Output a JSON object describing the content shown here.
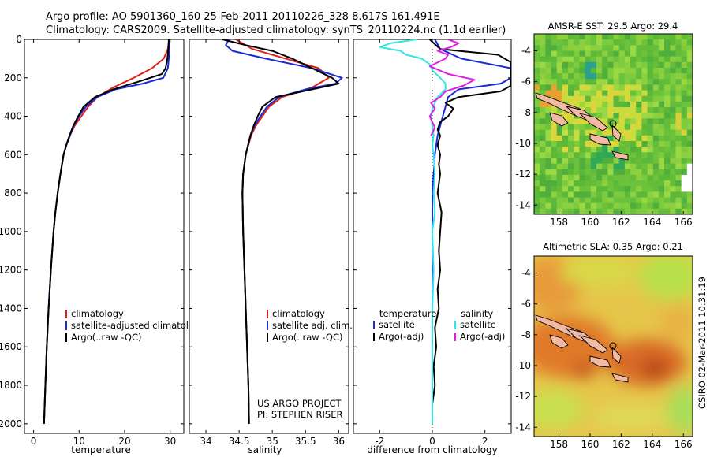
{
  "header": {
    "line1": "Argo profile: AO 5901360_160 25-Feb-2011 20110226_328 8.617S 161.491E",
    "line2": "Climatology: CARS2009. Satellite-adjusted climatology: synTS_20110224.nc (1.1d earlier)"
  },
  "footer": {
    "credit1": "US ARGO PROJECT",
    "credit2": "PI: STEPHEN RISER",
    "stamp": "CSIRO 02-Mar-2011 10:31:19"
  },
  "colors": {
    "climatology": "#e0201a",
    "satellite": "#1a2bd6",
    "argo": "#000000",
    "sal_satellite": "#33e6e6",
    "sal_argo": "#e020e0"
  },
  "chart_data": [
    {
      "type": "line",
      "id": "temperature",
      "xlabel": "temperature",
      "ylabel": "",
      "xlim": [
        -2,
        33
      ],
      "ylim": [
        2050,
        0
      ],
      "xticks": [
        0,
        10,
        20,
        30
      ],
      "yticks": [
        0,
        200,
        400,
        600,
        800,
        1000,
        1200,
        1400,
        1600,
        1800,
        2000
      ],
      "legend": [
        "climatology",
        "satellite-adjusted climatology",
        "Argo(..raw -QC)"
      ],
      "series": [
        {
          "name": "climatology",
          "color": "#e0201a",
          "y": [
            0,
            50,
            100,
            150,
            200,
            250,
            300,
            350,
            400,
            450,
            500,
            550,
            600,
            700,
            800,
            900,
            1000,
            1200,
            1400,
            1600,
            1800,
            2000
          ],
          "x": [
            29.8,
            29.5,
            28.6,
            26.0,
            22.0,
            17.5,
            14.0,
            12.0,
            10.5,
            9.0,
            8.0,
            7.2,
            6.6,
            5.9,
            5.3,
            4.8,
            4.4,
            3.8,
            3.3,
            2.9,
            2.6,
            2.3
          ]
        },
        {
          "name": "satellite-adjusted climatology",
          "color": "#1a2bd6",
          "y": [
            0,
            50,
            100,
            150,
            200,
            230,
            260,
            300,
            350,
            400,
            450,
            500,
            550,
            600,
            700,
            800,
            900,
            1000,
            1200,
            1400,
            1600,
            1800,
            2000
          ],
          "x": [
            29.9,
            29.8,
            29.7,
            29.5,
            28.5,
            24.0,
            18.0,
            14.0,
            11.5,
            10.0,
            8.8,
            8.0,
            7.2,
            6.6,
            5.9,
            5.3,
            4.8,
            4.4,
            3.8,
            3.3,
            2.9,
            2.6,
            2.3
          ]
        },
        {
          "name": "Argo(..raw -QC)",
          "color": "#000000",
          "y": [
            0,
            50,
            100,
            150,
            180,
            220,
            260,
            300,
            350,
            400,
            450,
            500,
            550,
            600,
            700,
            800,
            900,
            1000,
            1200,
            1400,
            1600,
            1800,
            2000
          ],
          "x": [
            29.7,
            29.6,
            29.4,
            29.0,
            28.2,
            23.0,
            17.5,
            13.5,
            11.0,
            9.8,
            8.7,
            7.9,
            7.2,
            6.6,
            5.9,
            5.3,
            4.8,
            4.4,
            3.8,
            3.3,
            2.9,
            2.6,
            2.3
          ]
        }
      ]
    },
    {
      "type": "line",
      "id": "salinity",
      "xlabel": "salinity",
      "ylabel": "",
      "xlim": [
        33.75,
        36.15
      ],
      "ylim": [
        2050,
        0
      ],
      "xticks": [
        34,
        34.5,
        35,
        35.5,
        36
      ],
      "legend": [
        "climatology",
        "satellite adj. clim.",
        "Argo(..raw -QC)"
      ],
      "series": [
        {
          "name": "climatology",
          "color": "#e0201a",
          "y": [
            0,
            50,
            100,
            150,
            200,
            250,
            300,
            350,
            400,
            450,
            500,
            600,
            700,
            800,
            1000,
            1200,
            1400,
            1600,
            1800,
            2000
          ],
          "x": [
            34.45,
            34.7,
            35.2,
            35.7,
            35.85,
            35.6,
            35.15,
            34.95,
            34.85,
            34.75,
            34.68,
            34.6,
            34.56,
            34.55,
            34.56,
            34.58,
            34.6,
            34.62,
            34.64,
            34.65
          ]
        },
        {
          "name": "satellite adj. clim.",
          "color": "#1a2bd6",
          "y": [
            0,
            30,
            60,
            100,
            150,
            200,
            230,
            260,
            300,
            350,
            400,
            450,
            500,
            600,
            700,
            800,
            1000,
            1200,
            1400,
            1600,
            1800,
            2000
          ],
          "x": [
            34.35,
            34.3,
            34.4,
            34.9,
            35.6,
            36.05,
            35.95,
            35.5,
            35.1,
            34.92,
            34.82,
            34.73,
            34.67,
            34.6,
            34.56,
            34.55,
            34.56,
            34.58,
            34.6,
            34.62,
            34.64,
            34.65
          ]
        },
        {
          "name": "Argo(..raw -QC)",
          "color": "#000000",
          "y": [
            0,
            30,
            60,
            100,
            150,
            200,
            230,
            260,
            300,
            350,
            400,
            450,
            500,
            600,
            700,
            800,
            1000,
            1200,
            1400,
            1600,
            1800,
            2000
          ],
          "x": [
            34.25,
            34.6,
            35.0,
            35.3,
            35.6,
            35.9,
            36.0,
            35.6,
            35.05,
            34.85,
            34.78,
            34.72,
            34.67,
            34.6,
            34.56,
            34.55,
            34.56,
            34.58,
            34.6,
            34.62,
            34.64,
            34.65
          ]
        }
      ]
    },
    {
      "type": "line",
      "id": "difference",
      "xlabel": "difference from climatology",
      "ylabel": "",
      "xlim": [
        -3,
        3
      ],
      "ylim": [
        2050,
        0
      ],
      "xticks": [
        -2,
        0,
        2
      ],
      "legend_temperature": {
        "title": "temperature",
        "items": [
          "satellite",
          "Argo(-adj)"
        ]
      },
      "legend_salinity": {
        "title": "salinity",
        "items": [
          "satellite",
          "Argo(-adj)"
        ]
      },
      "series": [
        {
          "name": "temperature satellite",
          "color": "#1a2bd6",
          "y": [
            0,
            50,
            100,
            150,
            200,
            230,
            260,
            300,
            350,
            400,
            450,
            500,
            600,
            700,
            800,
            1000,
            1200,
            1400,
            1600,
            1800,
            2000
          ],
          "x": [
            0.1,
            0.3,
            1.1,
            3.0,
            3.0,
            2.6,
            1.0,
            0.6,
            0.5,
            0.4,
            0.3,
            0.2,
            0.1,
            0.05,
            0.0,
            0.0,
            0.0,
            0.0,
            0.0,
            0.0,
            0.0
          ]
        },
        {
          "name": "temperature Argo(-adj)",
          "color": "#000000",
          "y": [
            0,
            50,
            80,
            120,
            160,
            200,
            240,
            270,
            300,
            330,
            360,
            400,
            430,
            470,
            500,
            550,
            600,
            650,
            700,
            800,
            900,
            1000,
            1100,
            1200,
            1300,
            1400,
            1500,
            1600,
            1700,
            1800,
            1900,
            2000
          ],
          "x": [
            -0.1,
            0.3,
            2.5,
            3.0,
            3.0,
            3.0,
            3.0,
            2.6,
            1.0,
            0.5,
            0.8,
            0.6,
            0.3,
            0.2,
            0.3,
            0.2,
            0.3,
            0.25,
            0.3,
            0.2,
            0.35,
            0.3,
            0.25,
            0.3,
            0.2,
            0.25,
            0.1,
            0.15,
            0.05,
            0.1,
            0.0,
            0.0
          ]
        },
        {
          "name": "salinity satellite",
          "color": "#33e6e6",
          "y": [
            0,
            20,
            40,
            60,
            80,
            100,
            130,
            160,
            200,
            230,
            260,
            300,
            330,
            360,
            400,
            450,
            500,
            550,
            600,
            700,
            800,
            900,
            1000,
            1200,
            1400,
            1600,
            1800,
            2000
          ],
          "x": [
            -0.6,
            -1.6,
            -2.0,
            -1.2,
            -1.0,
            -0.4,
            -0.1,
            0.0,
            0.3,
            0.5,
            0.5,
            0.2,
            0.1,
            0.0,
            -0.05,
            0.0,
            0.05,
            0.0,
            0.05,
            0.1,
            0.05,
            0.1,
            0.0,
            0.05,
            0.0,
            0.0,
            0.0,
            0.0
          ]
        },
        {
          "name": "salinity Argo(-adj)",
          "color": "#e020e0",
          "y": [
            0,
            20,
            40,
            60,
            80,
            100,
            140,
            180,
            210,
            240,
            270,
            300,
            330,
            360,
            400,
            430,
            460,
            500
          ],
          "x": [
            0.6,
            1.0,
            0.7,
            0.2,
            0.6,
            0.5,
            -0.1,
            0.6,
            1.6,
            1.2,
            0.5,
            0.3,
            -0.05,
            0.1,
            -0.1,
            0.0,
            0.1,
            -0.05
          ]
        }
      ]
    },
    {
      "type": "heatmap",
      "id": "sst_map",
      "title": "AMSR-E SST: 29.5 Argo: 29.4",
      "xlim": [
        156.4,
        166.6
      ],
      "ylim": [
        -14.6,
        -2.9
      ],
      "xticks": [
        158,
        160,
        162,
        164,
        166
      ],
      "yticks": [
        -4,
        -6,
        -8,
        -10,
        -12,
        -14
      ],
      "argo_position": {
        "lon": 161.491,
        "lat": -8.617
      }
    },
    {
      "type": "heatmap",
      "id": "sla_map",
      "title": "Altimetric SLA: 0.35 Argo: 0.21",
      "xlim": [
        156.4,
        166.6
      ],
      "ylim": [
        -14.6,
        -2.9
      ],
      "xticks": [
        158,
        160,
        162,
        164,
        166
      ],
      "yticks": [
        -4,
        -6,
        -8,
        -10,
        -12,
        -14
      ],
      "argo_position": {
        "lon": 161.491,
        "lat": -8.617
      }
    }
  ]
}
